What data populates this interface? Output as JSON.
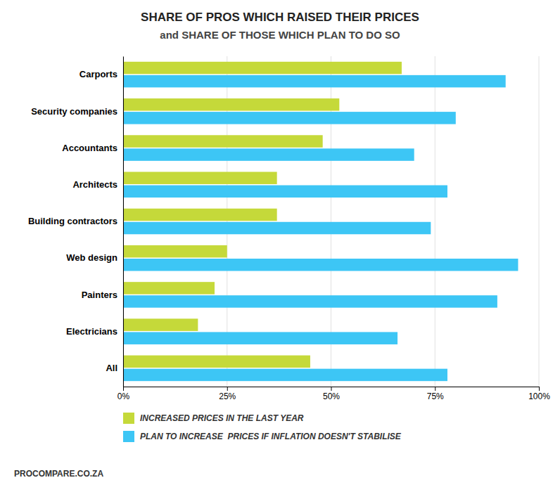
{
  "chart_data": {
    "type": "bar",
    "orientation": "horizontal",
    "title": "SHARE OF PROS WHICH RAISED THEIR PRICES",
    "subtitle": "and SHARE OF THOSE WHICH PLAN TO DO SO",
    "annotations": [
      "PROCOMPARE.CO.ZA"
    ],
    "categories": [
      "Carports",
      "Security companies",
      "Accountants",
      "Architects",
      "Building contractors",
      "Web design",
      "Painters",
      "Electricians",
      "All"
    ],
    "series": [
      {
        "name": "INCREASED PRICES IN THE LAST YEAR",
        "color": "#c5d93a",
        "values": [
          67,
          52,
          48,
          37,
          37,
          25,
          22,
          18,
          45
        ]
      },
      {
        "name": "PLAN TO INCREASE  PRICES IF INFLATION DOESN'T STABILISE",
        "color": "#3dc6f5",
        "values": [
          92,
          80,
          70,
          78,
          74,
          95,
          90,
          66,
          78
        ]
      }
    ],
    "xlim": [
      0,
      100
    ],
    "xticks": [
      {
        "value": 0,
        "label": "0%"
      },
      {
        "value": 25,
        "label": "25%"
      },
      {
        "value": 50,
        "label": "50%"
      },
      {
        "value": 75,
        "label": "75%"
      },
      {
        "value": 100,
        "label": "100%"
      }
    ],
    "grid": true,
    "legend": "bottom"
  }
}
